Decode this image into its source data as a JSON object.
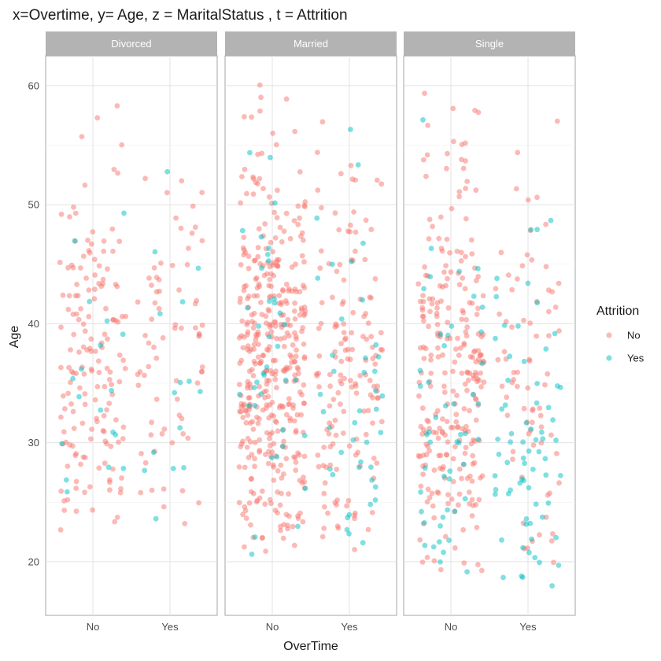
{
  "chart_data": {
    "type": "scatter",
    "subtype": "faceted jittered scatter",
    "title": "x=Overtime, y= Age, z = MaritalStatus , t = Attrition",
    "xlabel": "OverTime",
    "ylabel": "Age",
    "x_categories": [
      "No",
      "Yes"
    ],
    "y_ticks": [
      20,
      30,
      40,
      50,
      60
    ],
    "ylim": [
      15.5,
      62.5
    ],
    "facets": [
      "Divorced",
      "Married",
      "Single"
    ],
    "legend": {
      "title": "Attrition",
      "position": "right",
      "entries": [
        {
          "label": "No",
          "color": "#F8766D"
        },
        {
          "label": "Yes",
          "color": "#00BFC4"
        }
      ]
    },
    "grid": true,
    "point_opacity": 0.5,
    "groups": [
      {
        "facet": "Divorced",
        "overtime": "No",
        "attrition": "No",
        "count": 160,
        "age_min": 22,
        "age_max": 60,
        "age_mean": 36,
        "age_sd": 8.5
      },
      {
        "facet": "Divorced",
        "overtime": "No",
        "attrition": "Yes",
        "count": 18,
        "age_min": 25,
        "age_max": 50,
        "age_mean": 33,
        "age_sd": 7
      },
      {
        "facet": "Divorced",
        "overtime": "Yes",
        "attrition": "No",
        "count": 72,
        "age_min": 22,
        "age_max": 60,
        "age_mean": 38,
        "age_sd": 9
      },
      {
        "facet": "Divorced",
        "overtime": "Yes",
        "attrition": "Yes",
        "count": 15,
        "age_min": 23,
        "age_max": 58,
        "age_mean": 34,
        "age_sd": 9
      },
      {
        "facet": "Married",
        "overtime": "No",
        "attrition": "No",
        "count": 410,
        "age_min": 21,
        "age_max": 60,
        "age_mean": 36.5,
        "age_sd": 8.5
      },
      {
        "facet": "Married",
        "overtime": "No",
        "attrition": "Yes",
        "count": 38,
        "age_min": 21,
        "age_max": 58,
        "age_mean": 33,
        "age_sd": 9
      },
      {
        "facet": "Married",
        "overtime": "Yes",
        "attrition": "No",
        "count": 150,
        "age_min": 21,
        "age_max": 60,
        "age_mean": 37,
        "age_sd": 9
      },
      {
        "facet": "Married",
        "overtime": "Yes",
        "attrition": "Yes",
        "count": 42,
        "age_min": 21,
        "age_max": 58,
        "age_mean": 33,
        "age_sd": 9.5
      },
      {
        "facet": "Single",
        "overtime": "No",
        "attrition": "No",
        "count": 270,
        "age_min": 18,
        "age_max": 60,
        "age_mean": 34,
        "age_sd": 9.5
      },
      {
        "facet": "Single",
        "overtime": "No",
        "attrition": "Yes",
        "count": 50,
        "age_min": 18,
        "age_max": 58,
        "age_mean": 29,
        "age_sd": 9.5
      },
      {
        "facet": "Single",
        "overtime": "Yes",
        "attrition": "No",
        "count": 75,
        "age_min": 18,
        "age_max": 59,
        "age_mean": 36,
        "age_sd": 9
      },
      {
        "facet": "Single",
        "overtime": "Yes",
        "attrition": "Yes",
        "count": 70,
        "age_min": 18,
        "age_max": 55,
        "age_mean": 28,
        "age_sd": 8
      }
    ]
  }
}
